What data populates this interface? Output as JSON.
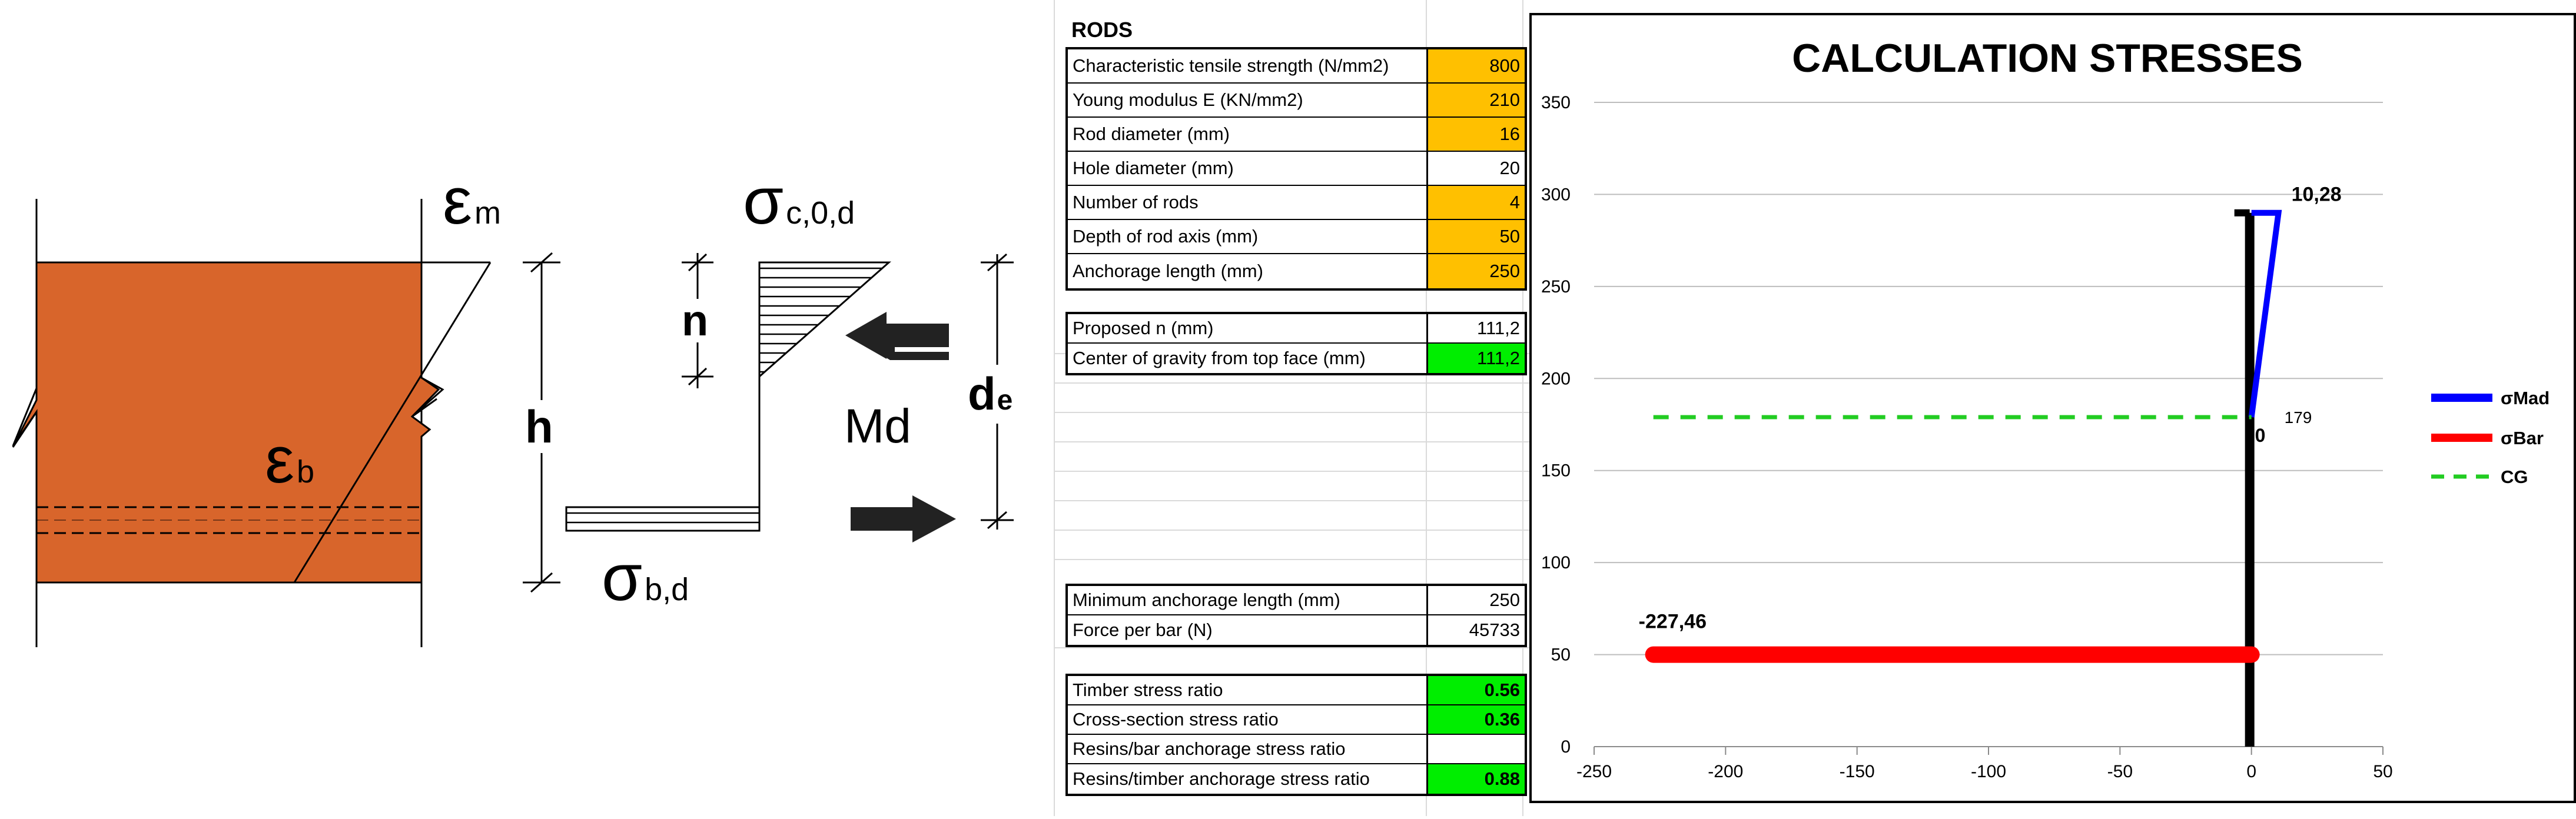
{
  "diagram": {
    "labels": {
      "eps_m_main": "ε",
      "eps_m_sub": "m",
      "eps_b_main": "ε",
      "eps_b_sub": "b",
      "h": "h",
      "n": "n",
      "sigma_c_main": "σ",
      "sigma_c_sub": "c,0,d",
      "sigma_b_main": "σ",
      "sigma_b_sub": "b,d",
      "md": "Md",
      "de_main": "d",
      "de_sub": "e"
    },
    "colors": {
      "timber": "#d8652b",
      "line": "#000000",
      "arrow": "#222222"
    }
  },
  "sheet": {
    "title": "RODS",
    "inputs": [
      {
        "label": "Characteristic tensile strength (N/mm2)",
        "value": "800",
        "fill": "#ffc000"
      },
      {
        "label": "Young modulus E (KN/mm2)",
        "value": "210",
        "fill": "#ffc000"
      },
      {
        "label": "Rod diameter (mm)",
        "value": "16",
        "fill": "#ffc000"
      },
      {
        "label": "Hole diameter (mm)",
        "value": "20",
        "fill": "#ffffff"
      },
      {
        "label": "Number of rods",
        "value": "4",
        "fill": "#ffc000"
      },
      {
        "label": "Depth of rod axis (mm)",
        "value": "50",
        "fill": "#ffc000"
      },
      {
        "label": "Anchorage length (mm)",
        "value": "250",
        "fill": "#ffc000"
      }
    ],
    "geometry": [
      {
        "label": "Proposed n (mm)",
        "value": "111,2",
        "fill": "#ffffff"
      },
      {
        "label": "Center of gravity from top face (mm)",
        "value": "111,2",
        "fill": "#00ee00"
      }
    ],
    "results": [
      {
        "label": "Minimum anchorage length (mm)",
        "value": "250",
        "fill": "#ffffff"
      },
      {
        "label": "Force per bar (N)",
        "value": "45733",
        "fill": "#ffffff"
      }
    ],
    "ratios": [
      {
        "label": "Timber stress ratio",
        "value": "0.56",
        "fill": "#00ee00"
      },
      {
        "label": "Cross-section stress ratio",
        "value": "0.36",
        "fill": "#00ee00"
      },
      {
        "label": "Resins/bar anchorage stress ratio",
        "value": "",
        "fill": "#ffffff"
      },
      {
        "label": "Resins/timber anchorage stress ratio",
        "value": "0.88",
        "fill": "#00ee00"
      }
    ]
  },
  "chart_data": {
    "type": "line",
    "title": "CALCULATION STRESSES",
    "xlim": [
      -250,
      50
    ],
    "ylim": [
      0,
      350
    ],
    "x_ticks": [
      "-250",
      "-200",
      "-150",
      "-100",
      "-50",
      "0",
      "50"
    ],
    "y_ticks": [
      "0",
      "50",
      "100",
      "150",
      "200",
      "250",
      "300",
      "350"
    ],
    "grid": "horizontal",
    "legend_position": "right",
    "series": [
      {
        "name": "σMad",
        "color": "#0000ff",
        "points": [
          [
            0,
            179
          ],
          [
            10.28,
            290
          ],
          [
            0,
            290
          ]
        ]
      },
      {
        "name": "σBar",
        "color": "#ff0000",
        "points": [
          [
            -227.46,
            50
          ],
          [
            0,
            50
          ]
        ]
      },
      {
        "name": "CG",
        "color": "#22cc22",
        "dashed": true,
        "points": [
          [
            -227.46,
            179
          ],
          [
            0,
            179
          ]
        ]
      }
    ],
    "section_axis": {
      "color": "#000000",
      "points": [
        [
          0,
          0
        ],
        [
          0,
          290
        ]
      ]
    },
    "data_labels": [
      {
        "text": "10,28",
        "x": 10.28,
        "y": 290
      },
      {
        "text": "-227,46",
        "x": -227.46,
        "y": 50
      },
      {
        "text": "0",
        "x": 0,
        "y": 179
      },
      {
        "text": "179",
        "x": 0,
        "y": 179
      }
    ]
  }
}
